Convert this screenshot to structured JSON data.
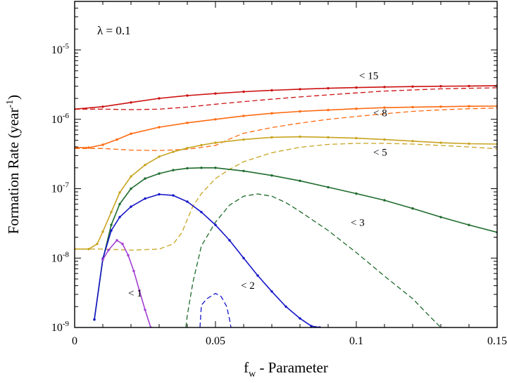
{
  "chart_data": {
    "type": "line",
    "title": "",
    "annotation": "λ = 0.1",
    "xlabel": "f",
    "xlabel_sub": "w",
    "xlabel_suffix": " - Parameter",
    "ylabel": "Formation Rate (year",
    "ylabel_sup": "-1",
    "ylabel_suffix": ")",
    "xlim": [
      0,
      0.15
    ],
    "ylim": [
      1e-09,
      5e-05
    ],
    "yscale": "log",
    "grid": false,
    "xticks": [
      {
        "value": 0,
        "label": "0"
      },
      {
        "value": 0.05,
        "label": "0.05"
      },
      {
        "value": 0.1,
        "label": "0.1"
      },
      {
        "value": 0.15,
        "label": "0.15"
      }
    ],
    "yticks": [
      {
        "value": 1e-09,
        "base": "10",
        "exp": "-9"
      },
      {
        "value": 1e-08,
        "base": "10",
        "exp": "-8"
      },
      {
        "value": 1e-07,
        "base": "10",
        "exp": "-7"
      },
      {
        "value": 1e-06,
        "base": "10",
        "exp": "-6"
      },
      {
        "value": 1e-05,
        "base": "10",
        "exp": "-5"
      }
    ],
    "series_labels": [
      {
        "text": "< 15",
        "x": 0.101,
        "y": 3.8e-06
      },
      {
        "text": "< 8",
        "x": 0.106,
        "y": 1.1e-06
      },
      {
        "text": "< 5",
        "x": 0.106,
        "y": 3e-07
      },
      {
        "text": "< 3",
        "x": 0.098,
        "y": 2.9e-08
      },
      {
        "text": "< 2",
        "x": 0.059,
        "y": 3.6e-09
      },
      {
        "text": "< 1",
        "x": 0.019,
        "y": 2.8e-09
      }
    ],
    "series": [
      {
        "label": "< 15",
        "style": "solid",
        "color": "#cc1111",
        "x": [
          0,
          0.01,
          0.02,
          0.03,
          0.04,
          0.05,
          0.06,
          0.07,
          0.08,
          0.09,
          0.1,
          0.11,
          0.12,
          0.13,
          0.14,
          0.15
        ],
        "y": [
          1.4e-06,
          1.52e-06,
          1.75e-06,
          2e-06,
          2.2e-06,
          2.35e-06,
          2.5e-06,
          2.62e-06,
          2.72e-06,
          2.8e-06,
          2.87e-06,
          2.92e-06,
          2.96e-06,
          3e-06,
          3.02e-06,
          3.05e-06
        ]
      },
      {
        "label": "< 15",
        "style": "dashed",
        "color": "#cc1111",
        "x": [
          0,
          0.01,
          0.02,
          0.03,
          0.04,
          0.05,
          0.06,
          0.07,
          0.08,
          0.09,
          0.1,
          0.11,
          0.12,
          0.13,
          0.14,
          0.15
        ],
        "y": [
          1.4e-06,
          1.4e-06,
          1.38e-06,
          1.4e-06,
          1.5e-06,
          1.65e-06,
          1.8e-06,
          1.95e-06,
          2.1e-06,
          2.25e-06,
          2.4e-06,
          2.55e-06,
          2.65e-06,
          2.75e-06,
          2.8e-06,
          2.85e-06
        ]
      },
      {
        "label": "< 8",
        "style": "solid",
        "color": "#ff6a10",
        "x": [
          0,
          0.005,
          0.01,
          0.015,
          0.02,
          0.03,
          0.04,
          0.05,
          0.06,
          0.07,
          0.08,
          0.09,
          0.1,
          0.11,
          0.12,
          0.13,
          0.14,
          0.15
        ],
        "y": [
          3.9e-07,
          3.9e-07,
          4.3e-07,
          5.1e-07,
          6.2e-07,
          7.7e-07,
          8.9e-07,
          1e-06,
          1.12e-06,
          1.22e-06,
          1.3e-06,
          1.36e-06,
          1.42e-06,
          1.47e-06,
          1.5e-06,
          1.52e-06,
          1.54e-06,
          1.55e-06
        ]
      },
      {
        "label": "< 8",
        "style": "dashed",
        "color": "#ff6a10",
        "x": [
          0,
          0.01,
          0.02,
          0.03,
          0.04,
          0.05,
          0.055,
          0.06,
          0.07,
          0.08,
          0.09,
          0.1,
          0.11,
          0.12,
          0.13,
          0.14,
          0.15
        ],
        "y": [
          3.8e-07,
          3.8e-07,
          3.6e-07,
          3.55e-07,
          3.7e-07,
          4.2e-07,
          5.2e-07,
          6.3e-07,
          7.6e-07,
          8.8e-07,
          1e-06,
          1.1e-06,
          1.2e-06,
          1.3e-06,
          1.37e-06,
          1.42e-06,
          1.45e-06
        ]
      },
      {
        "label": "< 5",
        "style": "solid",
        "color": "#c8a420",
        "x": [
          0,
          0.005,
          0.008,
          0.01,
          0.013,
          0.016,
          0.02,
          0.025,
          0.03,
          0.035,
          0.04,
          0.045,
          0.05,
          0.06,
          0.07,
          0.08,
          0.09,
          0.1,
          0.11,
          0.12,
          0.13,
          0.14,
          0.15
        ],
        "y": [
          1.35e-08,
          1.35e-08,
          1.6e-08,
          2.4e-08,
          4.6e-08,
          8.8e-08,
          1.5e-07,
          2.2e-07,
          2.9e-07,
          3.4e-07,
          3.85e-07,
          4.25e-07,
          4.6e-07,
          5.1e-07,
          5.5e-07,
          5.6e-07,
          5.5e-07,
          5.35e-07,
          5.1e-07,
          4.85e-07,
          4.6e-07,
          4.45e-07,
          4.4e-07
        ]
      },
      {
        "label": "< 5",
        "style": "dashed",
        "color": "#c8a420",
        "x": [
          0,
          0.01,
          0.02,
          0.03,
          0.035,
          0.038,
          0.04,
          0.042,
          0.045,
          0.05,
          0.055,
          0.06,
          0.07,
          0.08,
          0.09,
          0.1,
          0.11,
          0.12,
          0.13,
          0.14,
          0.15
        ],
        "y": [
          1.35e-08,
          1.35e-08,
          1.3e-08,
          1.35e-08,
          1.6e-08,
          2.3e-08,
          3.6e-08,
          5.6e-08,
          8.5e-08,
          1.4e-07,
          1.9e-07,
          2.45e-07,
          3.3e-07,
          3.95e-07,
          4.35e-07,
          4.5e-07,
          4.5e-07,
          4.4e-07,
          4.2e-07,
          4e-07,
          3.75e-07
        ]
      },
      {
        "label": "< 3",
        "style": "solid",
        "color": "#1e6b2c",
        "x": [
          0.007,
          0.01,
          0.013,
          0.016,
          0.02,
          0.025,
          0.03,
          0.035,
          0.04,
          0.045,
          0.05,
          0.06,
          0.07,
          0.08,
          0.09,
          0.1,
          0.11,
          0.12,
          0.13,
          0.14,
          0.15
        ],
        "y": [
          1.3e-09,
          9.5e-09,
          3e-08,
          6e-08,
          1e-07,
          1.4e-07,
          1.65e-07,
          1.85e-07,
          1.97e-07,
          2e-07,
          2e-07,
          1.8e-07,
          1.55e-07,
          1.3e-07,
          1.05e-07,
          8.5e-08,
          6.8e-08,
          5.2e-08,
          3.9e-08,
          3e-08,
          2.35e-08
        ]
      },
      {
        "label": "< 3",
        "style": "dashed",
        "color": "#1e6b2c",
        "x": [
          0.0395,
          0.04,
          0.042,
          0.045,
          0.05,
          0.055,
          0.06,
          0.065,
          0.07,
          0.075,
          0.08,
          0.09,
          0.1,
          0.11,
          0.12,
          0.125,
          0.13,
          0.133
        ],
        "y": [
          1e-09,
          1.5e-09,
          4.5e-09,
          1.5e-08,
          3.3e-08,
          5.8e-08,
          7.8e-08,
          8.4e-08,
          7.8e-08,
          6.3e-08,
          4.7e-08,
          2.5e-08,
          1.2e-08,
          5.5e-09,
          2.6e-09,
          1.6e-09,
          1e-09,
          1e-09
        ]
      },
      {
        "label": "< 2",
        "style": "solid",
        "color": "#1515c8",
        "x": [
          0.007,
          0.01,
          0.013,
          0.016,
          0.02,
          0.025,
          0.03,
          0.035,
          0.04,
          0.045,
          0.05,
          0.055,
          0.06,
          0.065,
          0.07,
          0.075,
          0.08,
          0.084,
          0.087
        ],
        "y": [
          1.3e-09,
          9.8e-09,
          2.5e-08,
          3.9e-08,
          5.5e-08,
          7.2e-08,
          8.3e-08,
          8e-08,
          6.5e-08,
          4.6e-08,
          3e-08,
          1.8e-08,
          1e-08,
          5.6e-09,
          3.3e-09,
          2e-09,
          1.35e-09,
          1.05e-09,
          1e-09
        ]
      },
      {
        "label": "< 2",
        "style": "dashed",
        "color": "#1515c8",
        "x": [
          0.0445,
          0.045,
          0.047,
          0.05,
          0.052,
          0.054,
          0.055,
          0.0555
        ],
        "y": [
          1e-09,
          2.1e-09,
          2.6e-09,
          3.1e-09,
          2.8e-09,
          2e-09,
          1.3e-09,
          1e-09
        ]
      },
      {
        "label": "< 1",
        "style": "solid",
        "color": "#a23fd1",
        "x": [
          0.01,
          0.012,
          0.015,
          0.017,
          0.019,
          0.021,
          0.023,
          0.025,
          0.027
        ],
        "y": [
          9.5e-09,
          1.3e-08,
          1.8e-08,
          1.6e-08,
          1.1e-08,
          6.5e-09,
          3.4e-09,
          1.8e-09,
          1e-09
        ]
      }
    ]
  }
}
